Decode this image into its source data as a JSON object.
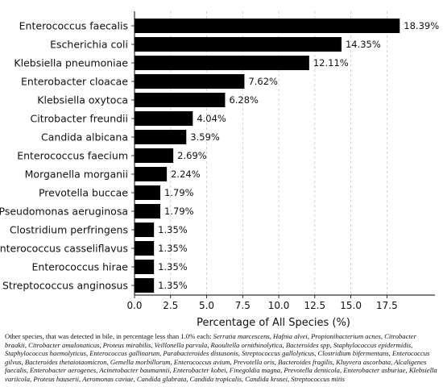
{
  "chart_data": {
    "type": "bar",
    "orientation": "horizontal",
    "categories": [
      "Enterococcus faecalis",
      "Escherichia coli",
      "Klebsiella pneumoniae",
      "Enterobacter cloacae",
      "Klebsiella oxytoca",
      "Citrobacter freundii",
      "Candida albicana",
      "Enterococcus faecium",
      "Morganella morganii",
      "Prevotella buccae",
      "Pseudomonas aeruginosa",
      "Clostridium perfringens",
      "Enterococcus casseliflavus",
      "Enterococcus hirae",
      "Streptococcus anginosus"
    ],
    "values": [
      18.39,
      14.35,
      12.11,
      7.62,
      6.28,
      4.04,
      3.59,
      2.69,
      2.24,
      1.79,
      1.79,
      1.35,
      1.35,
      1.35,
      1.35
    ],
    "value_labels": [
      "18.39%",
      "14.35%",
      "12.11%",
      "7.62%",
      "6.28%",
      "4.04%",
      "3.59%",
      "2.69%",
      "2.24%",
      "1.79%",
      "1.79%",
      "1.35%",
      "1.35%",
      "1.35%",
      "1.35%"
    ],
    "xlabel": "Percentage of All Species (%)",
    "ylabel": "",
    "title": "",
    "xlim": [
      0,
      18.39
    ],
    "xticks": [
      "0.0",
      "2.5",
      "5.0",
      "7.5",
      "10.0",
      "12.5",
      "15.0",
      "17.5"
    ],
    "grid": "x, dashed",
    "bar_color": "#000000"
  },
  "footnote": {
    "prefix": "Other species, that was detected in bile, in percentage less than 1.0% each: ",
    "species": "Serratia marcescens, Hafnia alvei, Propionibacterium acnes, Citrobacter braakii, Citrobacter amalonaticus, Proteus mirabilis, Veillonella parvula, Raoultella ornithinolytica, Bacteroides spp, Staphylococcus epidermidis, Staphylococcus haemolyticus, Enterococcus gallinarum, Parabacteroides distasonis, Streptococcus gallolyticus, Clostridium bifermentans, Enterococcus gilvus, Bacteroides thetaiotaomicron, Gemella morbillorum, Enterococcus avium, Prevotella oris, Bacteroides fragilis, Kluyvera ascorbata, Alcaligenes faecalis, Enterobacter aerogenes, Acinetobacter baumannii, Enterobacter kobei, Finegoldia magna, Prevotella denticola, Enterobacter asburiae, Klebsiella variicola, Proteus hauserii, Aeromonas caviae, Candida glabrata, Candida tropicalis, Candida krusei, Streptococcus mitis"
  }
}
